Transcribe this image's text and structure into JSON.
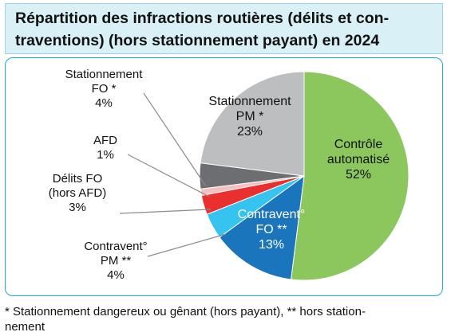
{
  "chart_data": {
    "type": "pie",
    "title": "Répartition des infractions routières (délits et contraventions) (hors stationnement payant) en 2024",
    "title_lines": [
      "Répartition des infractions routières (délits et con-",
      "traventions) (hors stationnement payant) en 2024"
    ],
    "slices": [
      {
        "label_lines": [
          "Contrôle",
          "automatisé"
        ],
        "value": 52,
        "value_label": "52%",
        "color": "#8cc75e",
        "text_color": "#111111"
      },
      {
        "label_lines": [
          "Contravent°",
          "FO **"
        ],
        "value": 13,
        "value_label": "13%",
        "color": "#1b75bc",
        "text_color": "#ffffff"
      },
      {
        "label_lines": [
          "Contravent°",
          "PM **"
        ],
        "value": 4,
        "value_label": "4%",
        "color": "#35c3ef",
        "text_color": "#111111"
      },
      {
        "label_lines": [
          "Délits FO",
          "(hors AFD)"
        ],
        "value": 3,
        "value_label": "3%",
        "color": "#ea2f2f",
        "text_color": "#111111"
      },
      {
        "label_lines": [
          "AFD"
        ],
        "value": 1,
        "value_label": "1%",
        "color": "#f7c0c0",
        "text_color": "#111111"
      },
      {
        "label_lines": [
          "Stationnement",
          "FO *"
        ],
        "value": 4,
        "value_label": "4%",
        "color": "#6d6e71",
        "text_color": "#111111"
      },
      {
        "label_lines": [
          "Stationnement",
          "PM *"
        ],
        "value": 23,
        "value_label": "23%",
        "color": "#bcbec0",
        "text_color": "#111111"
      }
    ],
    "legend": "none"
  },
  "footnote": {
    "line1": "* Stationnement dangereux ou gênant (hors payant), ** hors station-",
    "line2": "nement"
  }
}
